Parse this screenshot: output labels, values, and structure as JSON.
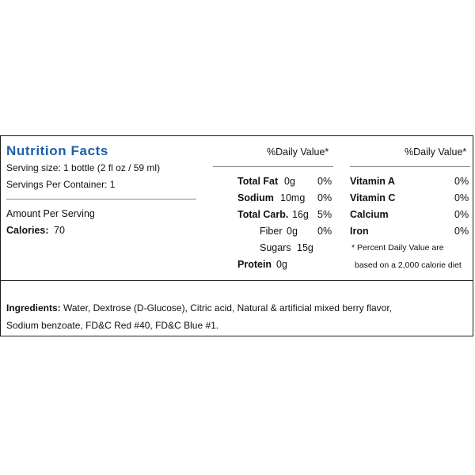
{
  "colors": {
    "title": "#1f5ea8",
    "border": "#1a1a1a",
    "rule": "#8a8a8a"
  },
  "title": "Nutrition Facts",
  "serving_size": "Serving size: 1 bottle (2 fl oz / 59 ml)",
  "servings_per_container": "Servings Per Container: 1",
  "amount_per_serving": "Amount Per Serving",
  "calories": {
    "label": "Calories:",
    "value": "70"
  },
  "daily_value_header_1": "%Daily Value*",
  "daily_value_header_2": "%Daily Value*",
  "nutrients": [
    {
      "label": "Total Fat",
      "amount": "0g",
      "dv": "0%"
    },
    {
      "label": "Sodium",
      "amount": "10mg",
      "dv": "0%"
    },
    {
      "label": "Total Carb.",
      "amount": "16g",
      "dv": "5%"
    },
    {
      "label": "Fiber",
      "amount": "0g",
      "dv": "0%"
    },
    {
      "label": "Sugars",
      "amount": "15g",
      "dv": ""
    },
    {
      "label": "Protein",
      "amount": "0g",
      "dv": ""
    }
  ],
  "vitamins": [
    {
      "label": "Vitamin A",
      "dv": "0%"
    },
    {
      "label": "Vitamin C",
      "dv": "0%"
    },
    {
      "label": "Calcium",
      "dv": "0%"
    },
    {
      "label": "Iron",
      "dv": "0%"
    }
  ],
  "footnote_line1": "* Percent Daily Value are",
  "footnote_line2": "based on a 2,000 calorie diet",
  "ingredients": {
    "label": "Ingredients:",
    "text_line1": " Water, Dextrose (D-Glucose), Citric acid, Natural & artificial mixed berry flavor,",
    "text_line2": "Sodium benzoate, FD&C Red #40, FD&C Blue #1."
  }
}
